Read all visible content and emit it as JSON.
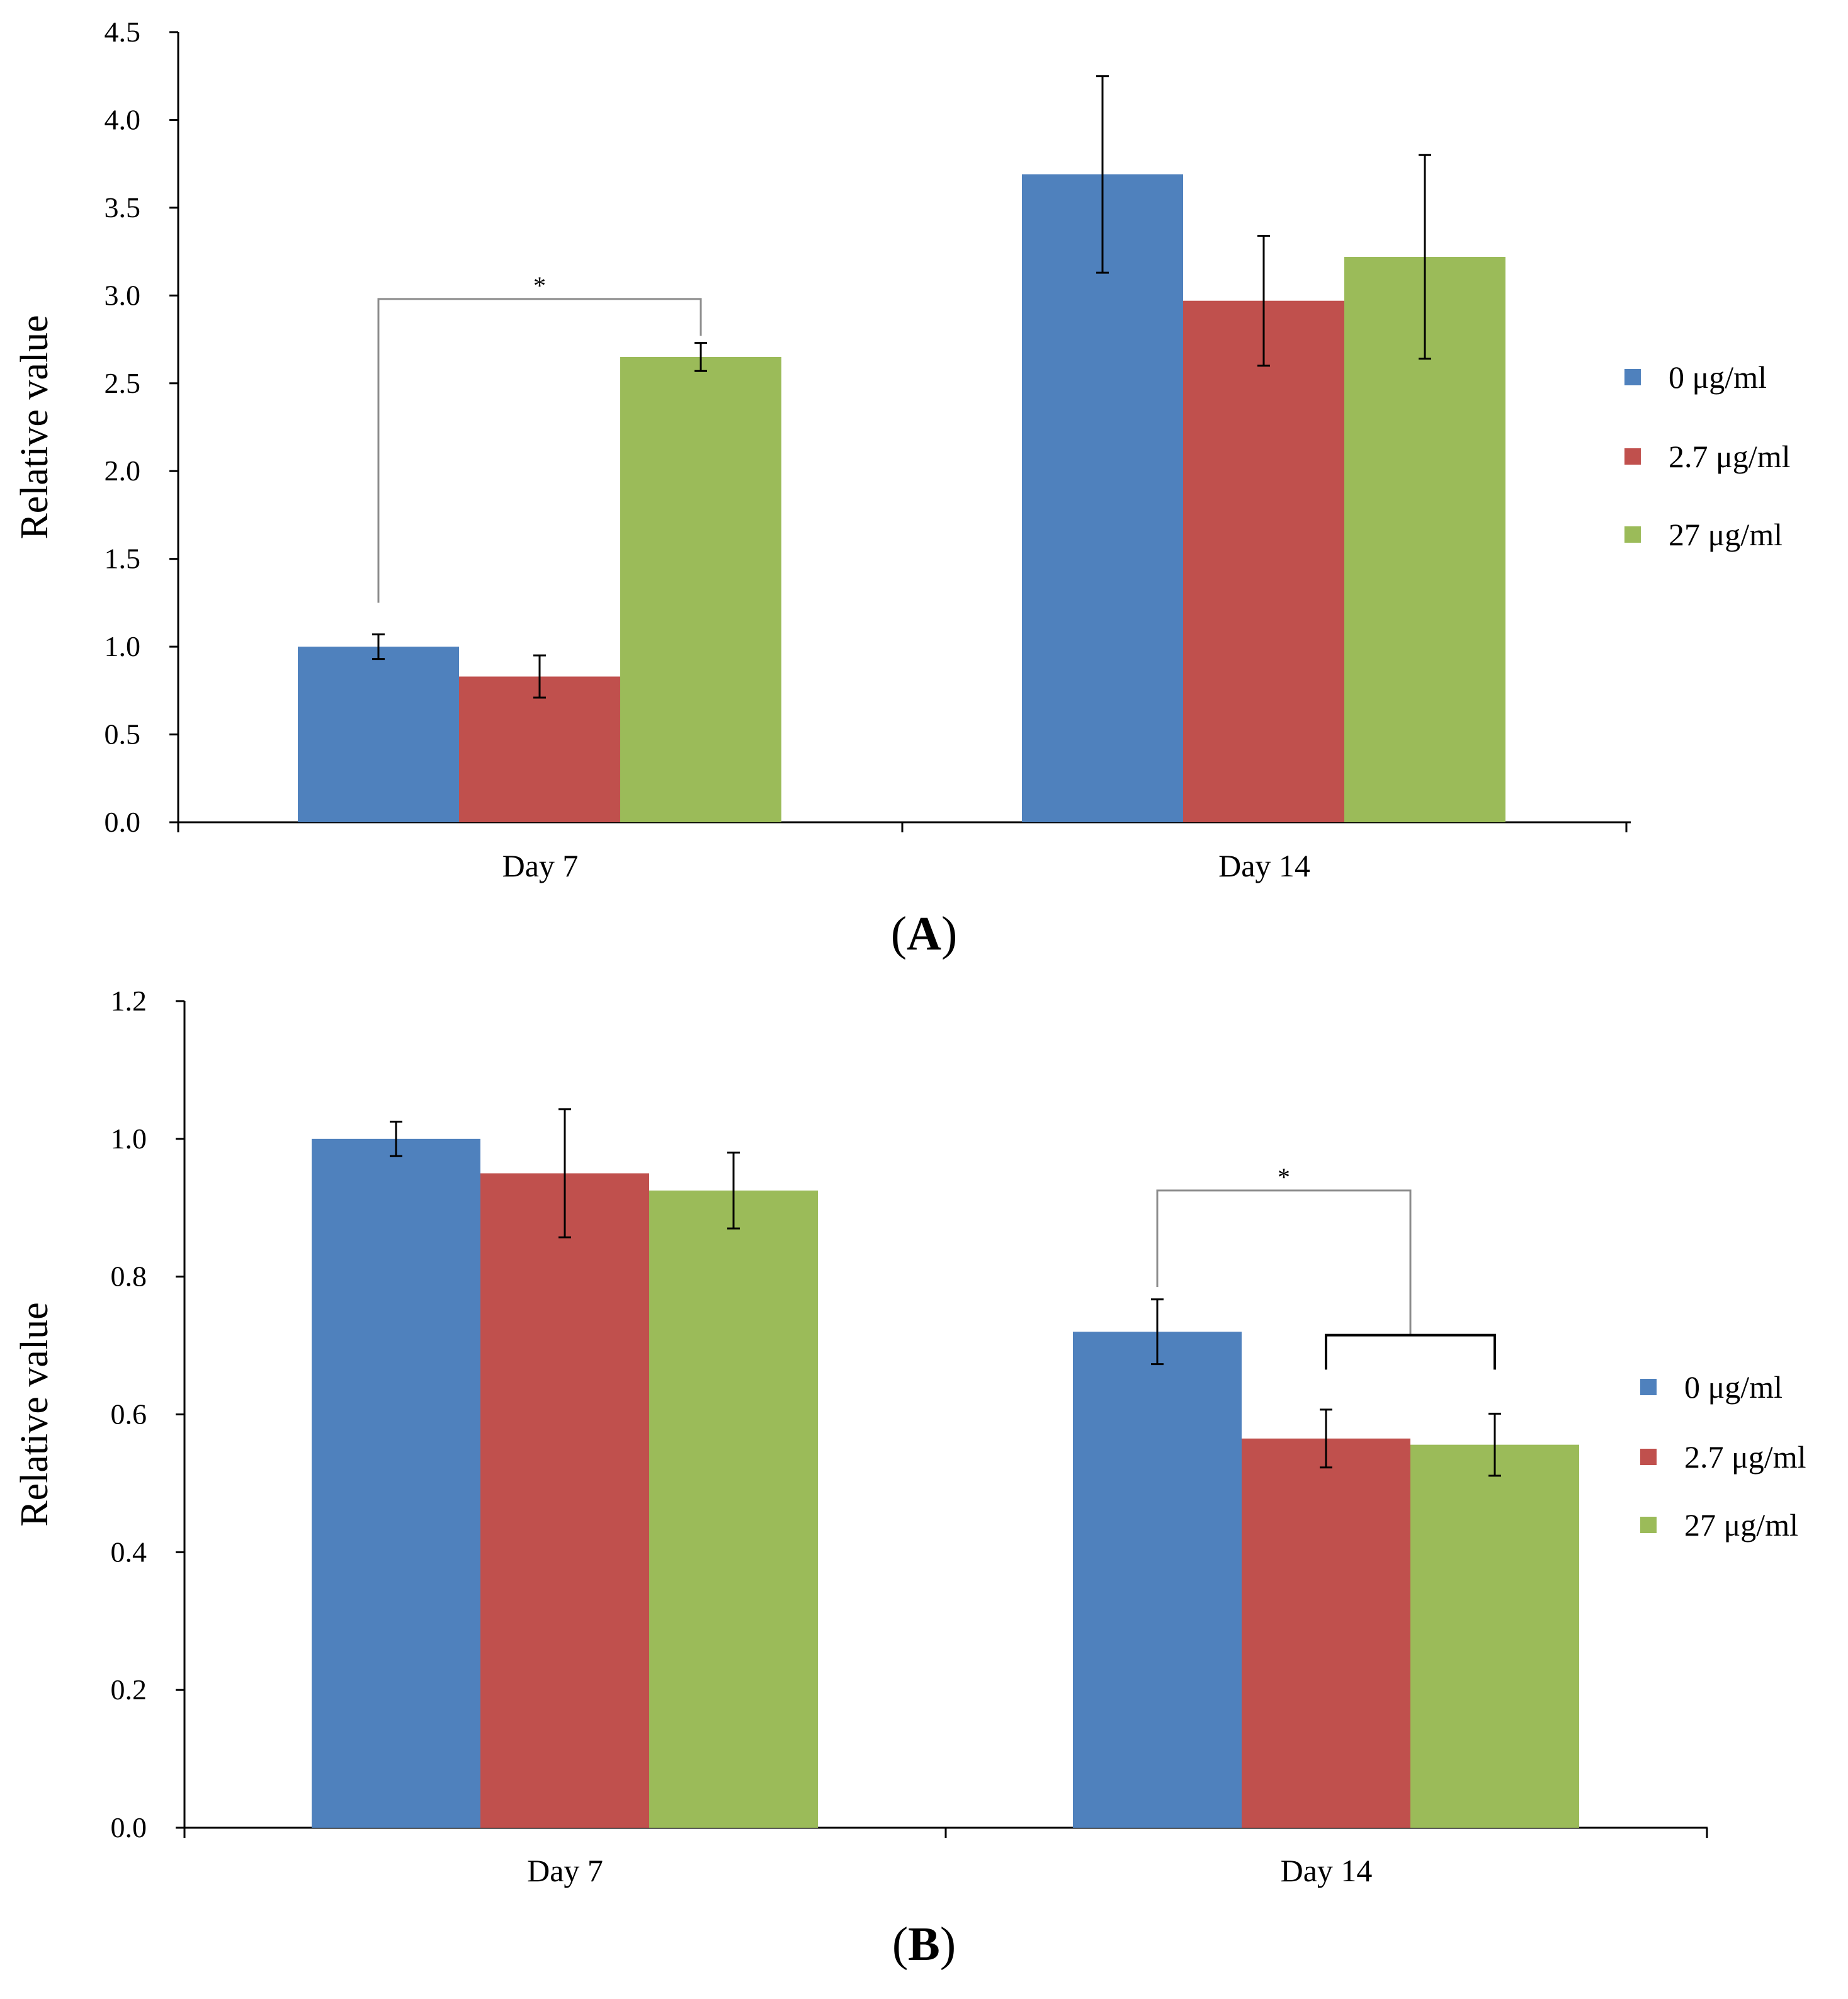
{
  "chart_data": [
    {
      "type": "bar",
      "panel_label": "A",
      "categories": [
        "Day 7",
        "Day 14"
      ],
      "series": [
        {
          "name": "0 μg/ml",
          "color": "#4F81BD",
          "values": [
            1.0,
            3.69
          ],
          "errors": [
            0.07,
            0.56
          ]
        },
        {
          "name": "2.7 μg/ml",
          "color": "#C0504D",
          "values": [
            0.83,
            2.97
          ],
          "errors": [
            0.12,
            0.37
          ]
        },
        {
          "name": "27 μg/ml",
          "color": "#9BBB59",
          "values": [
            2.65,
            3.22
          ],
          "errors": [
            0.08,
            0.58
          ]
        }
      ],
      "ylabel": "Relative value",
      "ylim": [
        0,
        4.5
      ],
      "yticks": [
        "0.0",
        "0.5",
        "1.0",
        "1.5",
        "2.0",
        "2.5",
        "3.0",
        "3.5",
        "4.0",
        "4.5"
      ],
      "legend": "right",
      "grid": false,
      "annotations": [
        {
          "text": "*",
          "type": "significance-bracket",
          "category": "Day 7",
          "from_series": 0,
          "to_series": 2
        }
      ]
    },
    {
      "type": "bar",
      "panel_label": "B",
      "categories": [
        "Day 7",
        "Day 14"
      ],
      "series": [
        {
          "name": "0 μg/ml",
          "color": "#4F81BD",
          "values": [
            1.0,
            0.72
          ],
          "errors": [
            0.025,
            0.047
          ]
        },
        {
          "name": "2.7 μg/ml",
          "color": "#C0504D",
          "values": [
            0.95,
            0.565
          ],
          "errors": [
            0.093,
            0.042
          ]
        },
        {
          "name": "27 μg/ml",
          "color": "#9BBB59",
          "values": [
            0.925,
            0.556
          ],
          "errors": [
            0.055,
            0.045
          ]
        }
      ],
      "ylabel": "Relative value",
      "ylim": [
        0,
        1.2
      ],
      "yticks": [
        "0.0",
        "0.2",
        "0.4",
        "0.6",
        "0.8",
        "1.0",
        "1.2"
      ],
      "legend": "right",
      "grid": false,
      "annotations": [
        {
          "text": "*",
          "type": "significance-bracket",
          "category": "Day 14",
          "from_series": 0,
          "to_series": [
            1,
            2
          ]
        }
      ]
    }
  ]
}
